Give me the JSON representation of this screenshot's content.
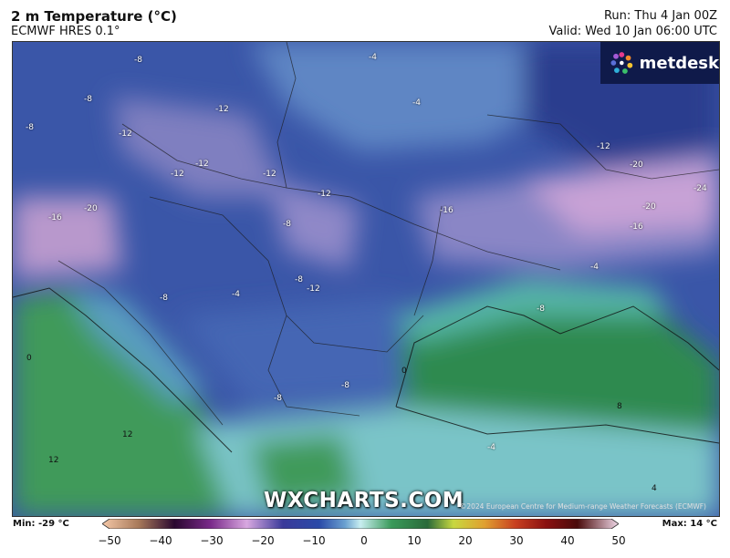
{
  "header": {
    "title": "2 m Temperature (°C)",
    "model": "ECMWF HRES 0.1°",
    "run": "Run: Thu 4 Jan 00Z",
    "valid": "Valid: Wed 10 Jan 06:00 UTC"
  },
  "logo": {
    "text": "metdesk",
    "icon": "metdesk-flower-icon"
  },
  "watermark": "WXCHARTS.COM",
  "copyright": "©2024 European Centre for Medium-range Weather Forecasts (ECMWF)",
  "legend": {
    "min_label": "Min: -29 °C",
    "max_label": "Max: 14 °C",
    "ticks": [
      "−50",
      "−40",
      "−30",
      "−20",
      "−10",
      "0",
      "10",
      "20",
      "30",
      "40",
      "50"
    ],
    "range": [
      -50,
      50
    ]
  },
  "contour_labels": [
    {
      "text": "-8"
    },
    {
      "text": "-4"
    },
    {
      "text": "-8"
    },
    {
      "text": "-12"
    },
    {
      "text": "-8"
    },
    {
      "text": "-12"
    },
    {
      "text": "-4"
    },
    {
      "text": "-12"
    },
    {
      "text": "-12"
    },
    {
      "text": "-12"
    },
    {
      "text": "-12"
    },
    {
      "text": "-20"
    },
    {
      "text": "-16"
    },
    {
      "text": "-20"
    },
    {
      "text": "-24"
    },
    {
      "text": "-16"
    },
    {
      "text": "-20"
    },
    {
      "text": "-16"
    },
    {
      "text": "-8"
    },
    {
      "text": "-12"
    },
    {
      "text": "-8"
    },
    {
      "text": "-12"
    },
    {
      "text": "-4"
    },
    {
      "text": "-8"
    },
    {
      "text": "-8"
    },
    {
      "text": "-4"
    },
    {
      "text": "0"
    },
    {
      "text": "8"
    },
    {
      "text": "12"
    },
    {
      "text": "12"
    },
    {
      "text": "-8"
    },
    {
      "text": "-8"
    },
    {
      "text": "4"
    },
    {
      "text": "0"
    },
    {
      "text": "-4"
    }
  ]
}
